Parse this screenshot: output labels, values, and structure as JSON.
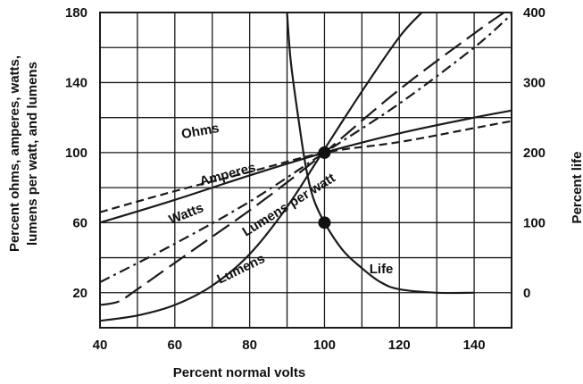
{
  "chart_data": {
    "type": "line",
    "xlabel": "Percent normal volts",
    "ylabel_left": [
      "Percent ohms, amperes, watts,",
      "lumens per watt, and lumens"
    ],
    "ylabel_right": "Percent life",
    "xlim": [
      40,
      150
    ],
    "ylim_left": [
      0,
      180
    ],
    "ylim_right": [
      -50,
      400
    ],
    "x_ticks": [
      40,
      60,
      80,
      100,
      120,
      140
    ],
    "y_ticks_left": [
      20,
      60,
      100,
      140,
      180
    ],
    "y_ticks_right": [
      0,
      100,
      200,
      300,
      400
    ],
    "grid": true,
    "series": [
      {
        "name": "Ohms",
        "axis": "left",
        "dash": "solid",
        "x": [
          40,
          60,
          80,
          100,
          120,
          140,
          150
        ],
        "y": [
          60,
          73,
          87,
          100,
          111,
          120,
          124
        ]
      },
      {
        "name": "Amperes",
        "axis": "left",
        "dash": "dash",
        "x": [
          40,
          60,
          80,
          100,
          120,
          140,
          150
        ],
        "y": [
          66,
          78,
          89,
          100,
          106,
          114,
          118
        ]
      },
      {
        "name": "Watts",
        "axis": "left",
        "dash": "dashdot",
        "x": [
          40,
          60,
          80,
          100,
          120,
          140,
          150
        ],
        "y": [
          26,
          48,
          72,
          100,
          128,
          160,
          179
        ]
      },
      {
        "name": "Lumens per watt",
        "axis": "left",
        "dash": "longdash",
        "x": [
          40,
          45,
          50,
          60,
          70,
          80,
          90,
          100,
          120,
          140,
          148
        ],
        "y": [
          13,
          15,
          22,
          37,
          52,
          67,
          83,
          100,
          136,
          168,
          180
        ]
      },
      {
        "name": "Lumens",
        "axis": "left",
        "dash": "solid",
        "x": [
          40,
          50,
          60,
          70,
          80,
          90,
          100,
          110,
          120,
          126
        ],
        "y": [
          4,
          7,
          13,
          24,
          42,
          69,
          102,
          135,
          166,
          180
        ]
      },
      {
        "name": "Life",
        "axis": "right",
        "dash": "solid",
        "x": [
          90,
          91,
          93,
          95,
          97,
          100,
          105,
          110,
          115,
          120,
          130,
          140
        ],
        "y": [
          400,
          330,
          250,
          180,
          135,
          100,
          60,
          35,
          15,
          5,
          0,
          0
        ]
      }
    ],
    "markers": [
      {
        "x": 100,
        "y_left": 100
      },
      {
        "x": 100,
        "y_right": 100
      }
    ]
  }
}
